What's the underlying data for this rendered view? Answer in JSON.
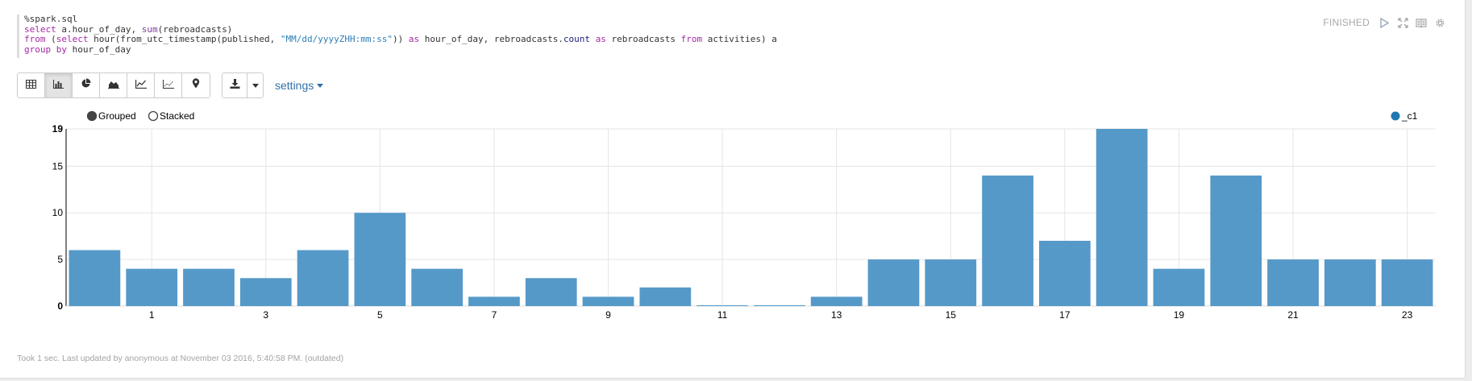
{
  "editor": {
    "lines": [
      [
        {
          "t": "%spark.sql",
          "c": "plain"
        }
      ],
      [
        {
          "t": "select",
          "c": "kw"
        },
        {
          "t": " a.hour_of_day, ",
          "c": "plain"
        },
        {
          "t": "sum",
          "c": "fn"
        },
        {
          "t": "(rebroadcasts)",
          "c": "plain"
        }
      ],
      [
        {
          "t": "from",
          "c": "kw"
        },
        {
          "t": " (",
          "c": "plain"
        },
        {
          "t": "select",
          "c": "kw"
        },
        {
          "t": " hour(from_utc_timestamp(published, ",
          "c": "plain"
        },
        {
          "t": "\"MM/dd/yyyyZHH:mm:ss\"",
          "c": "str"
        },
        {
          "t": ")) ",
          "c": "plain"
        },
        {
          "t": "as",
          "c": "kw"
        },
        {
          "t": " hour_of_day, rebroadcasts.",
          "c": "plain"
        },
        {
          "t": "count",
          "c": "id"
        },
        {
          "t": " ",
          "c": "plain"
        },
        {
          "t": "as",
          "c": "kw"
        },
        {
          "t": " rebroadcasts ",
          "c": "plain"
        },
        {
          "t": "from",
          "c": "kw"
        },
        {
          "t": " activities) a",
          "c": "plain"
        }
      ],
      [
        {
          "t": "group by",
          "c": "kw"
        },
        {
          "t": " hour_of_day",
          "c": "plain"
        }
      ]
    ]
  },
  "status": {
    "text": "FINISHED",
    "icons": [
      "play-icon",
      "expand-icon",
      "book-icon",
      "gear-icon"
    ]
  },
  "toolbar": {
    "chart_buttons": [
      {
        "name": "table-view",
        "icon": "table-icon",
        "active": false
      },
      {
        "name": "bar-chart-view",
        "icon": "bar-chart-icon",
        "active": true
      },
      {
        "name": "pie-chart-view",
        "icon": "pie-chart-icon",
        "active": false
      },
      {
        "name": "area-chart-view",
        "icon": "area-chart-icon",
        "active": false
      },
      {
        "name": "line-chart-view",
        "icon": "line-chart-icon",
        "active": false
      },
      {
        "name": "scatter-chart-view",
        "icon": "scatter-chart-icon",
        "active": false
      },
      {
        "name": "map-view",
        "icon": "map-marker-icon",
        "active": false
      }
    ],
    "download_icon": "download-icon",
    "settings_label": "settings"
  },
  "chart_data": {
    "type": "bar",
    "mode_options": [
      {
        "label": "Grouped",
        "selected": true
      },
      {
        "label": "Stacked",
        "selected": false
      }
    ],
    "legend": [
      {
        "name": "_c1",
        "color": "#1f77b4"
      }
    ],
    "legend_placement": "top-right",
    "categories": [
      0,
      1,
      2,
      3,
      4,
      5,
      6,
      7,
      8,
      9,
      10,
      11,
      12,
      13,
      14,
      15,
      16,
      17,
      18,
      19,
      20,
      21,
      22,
      23
    ],
    "x_tick_labels": [
      "1",
      "3",
      "5",
      "7",
      "9",
      "11",
      "13",
      "15",
      "17",
      "19",
      "21",
      "23"
    ],
    "series": [
      {
        "name": "_c1",
        "color": "#5599c8",
        "values": [
          6,
          4,
          4,
          3,
          6,
          10,
          4,
          1,
          3,
          1,
          2,
          0,
          0,
          1,
          5,
          5,
          14,
          7,
          19,
          4,
          14,
          5,
          5,
          5
        ]
      }
    ],
    "y_ticks": [
      "0",
      "5",
      "10",
      "15",
      "19"
    ],
    "ylim": [
      0,
      19
    ],
    "grid": true,
    "xlabel": "",
    "ylabel": ""
  },
  "footer": {
    "text": "Took 1 sec. Last updated by anonymous at November 03 2016, 5:40:58 PM. (outdated)"
  }
}
